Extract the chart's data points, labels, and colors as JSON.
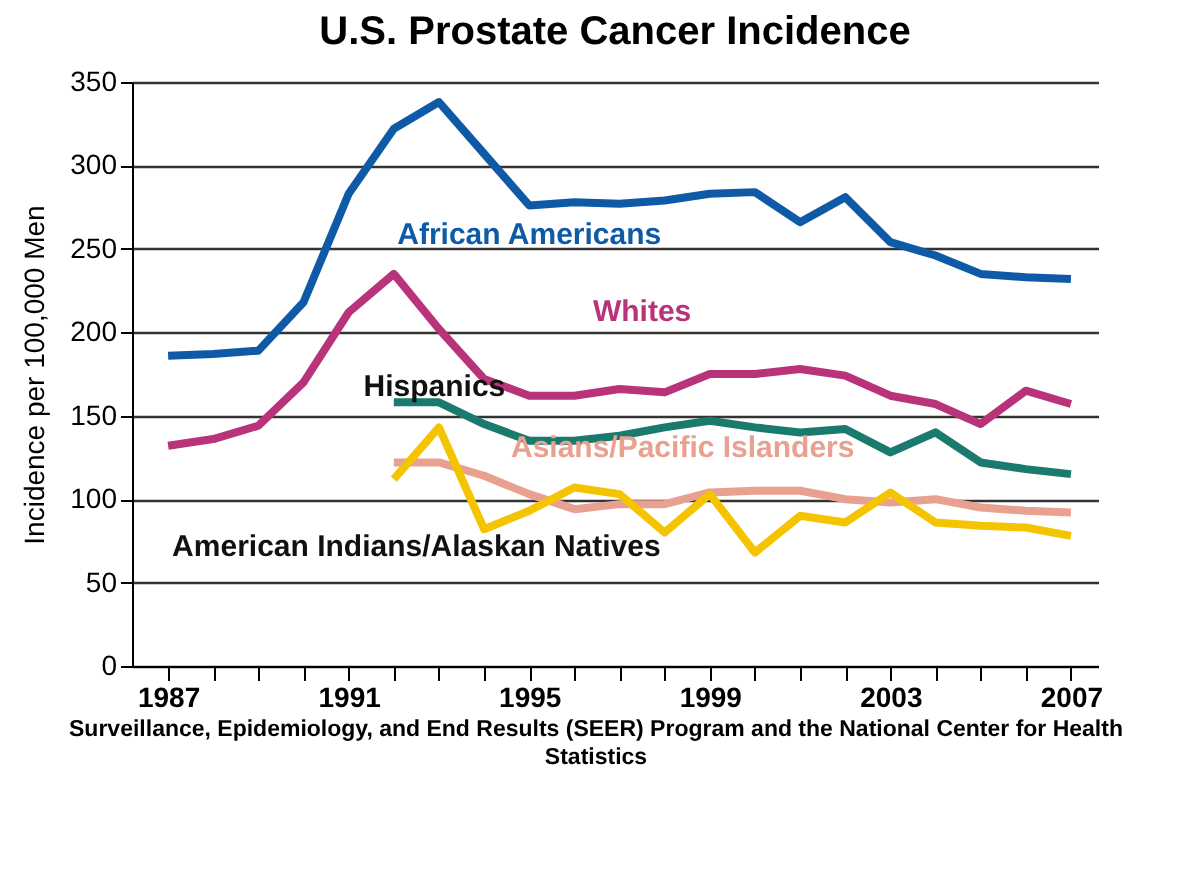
{
  "chart_data": {
    "type": "line",
    "title": "U.S. Prostate Cancer Incidence",
    "ylabel": "Incidence per 100,000 Men",
    "x": [
      1987,
      1988,
      1989,
      1990,
      1991,
      1992,
      1993,
      1994,
      1995,
      1996,
      1997,
      1998,
      1999,
      2000,
      2001,
      2002,
      2003,
      2004,
      2005,
      2006,
      2007
    ],
    "series": [
      {
        "name": "African Americans",
        "color": "#0f5aa6",
        "values": [
          186,
          187,
          189,
          218,
          283,
          322,
          338,
          307,
          276,
          278,
          277,
          279,
          283,
          284,
          266,
          281,
          254,
          246,
          235,
          233,
          232
        ]
      },
      {
        "name": "Whites",
        "color": "#b8337a",
        "values": [
          132,
          136,
          144,
          170,
          212,
          235,
          202,
          172,
          162,
          162,
          166,
          164,
          175,
          175,
          178,
          174,
          162,
          157,
          145,
          165,
          157
        ]
      },
      {
        "name": "Hispanics",
        "color": "#1a7a6e",
        "values": [
          null,
          null,
          null,
          null,
          null,
          158,
          158,
          145,
          135,
          135,
          138,
          143,
          147,
          143,
          140,
          142,
          128,
          140,
          122,
          118,
          115
        ]
      },
      {
        "name": "Asians/Pacific Islanders",
        "color": "#e8a090",
        "values": [
          null,
          null,
          null,
          null,
          null,
          122,
          122,
          114,
          103,
          94,
          97,
          97,
          104,
          105,
          105,
          100,
          98,
          100,
          95,
          93,
          92
        ]
      },
      {
        "name": "American Indians/Alaskan Natives",
        "color": "#f5c400",
        "values": [
          null,
          null,
          null,
          null,
          null,
          112,
          143,
          82,
          93,
          107,
          103,
          80,
          103,
          68,
          90,
          86,
          104,
          86,
          84,
          83,
          78
        ]
      }
    ],
    "xlim": [
      1986.2,
      2007.6
    ],
    "xticks": [
      1987,
      {
        "value": 1988,
        "label": null
      },
      {
        "value": 1989,
        "label": null
      },
      {
        "value": 1990,
        "label": null
      },
      1991,
      {
        "value": 1992,
        "label": null
      },
      {
        "value": 1993,
        "label": null
      },
      {
        "value": 1994,
        "label": null
      },
      1995,
      {
        "value": 1996,
        "label": null
      },
      {
        "value": 1997,
        "label": null
      },
      {
        "value": 1998,
        "label": null
      },
      1999,
      {
        "value": 2000,
        "label": null
      },
      {
        "value": 2001,
        "label": null
      },
      {
        "value": 2002,
        "label": null
      },
      2003,
      {
        "value": 2004,
        "label": null
      },
      {
        "value": 2005,
        "label": null
      },
      {
        "value": 2006,
        "label": null
      },
      2007
    ],
    "ylim": [
      0,
      350
    ],
    "yticks": [
      0,
      50,
      100,
      150,
      200,
      250,
      300,
      350
    ],
    "grid": "y",
    "legend": false,
    "marker": "none",
    "line_style": "solid",
    "annotations": [
      "Surveillance, Epidemiology, and End Results (SEER) Program and the National Center for Health Statistics"
    ]
  }
}
